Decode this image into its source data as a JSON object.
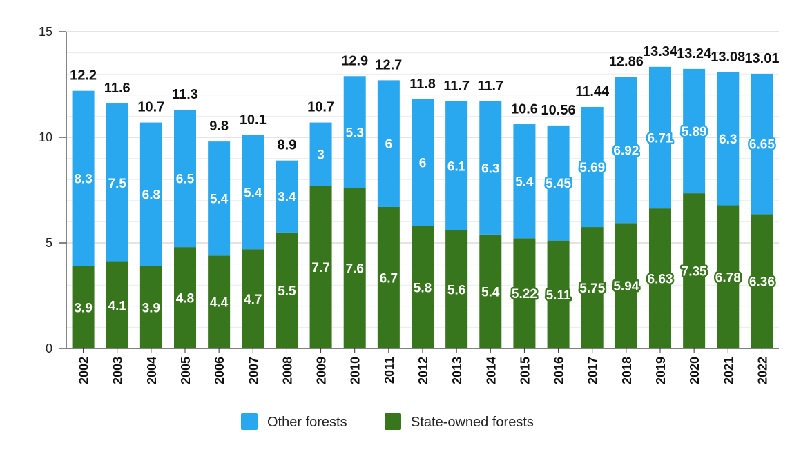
{
  "chart_data": {
    "type": "bar",
    "stacked": true,
    "title": "",
    "xlabel": "",
    "ylabel": "",
    "ylim": [
      0,
      15
    ],
    "yticks": [
      0,
      5,
      10,
      15
    ],
    "grid": true,
    "legend_position": "bottom",
    "categories": [
      "2002",
      "2003",
      "2004",
      "2005",
      "2006",
      "2007",
      "2008",
      "2009",
      "2010",
      "2011",
      "2012",
      "2013",
      "2014",
      "2015",
      "2016",
      "2017",
      "2018",
      "2019",
      "2020",
      "2021",
      "2022"
    ],
    "series": [
      {
        "name": "State-owned forests",
        "color": "#38761d",
        "values": [
          3.9,
          4.1,
          3.9,
          4.8,
          4.4,
          4.7,
          5.5,
          7.7,
          7.6,
          6.7,
          5.8,
          5.6,
          5.4,
          5.22,
          5.11,
          5.75,
          5.94,
          6.63,
          7.35,
          6.78,
          6.36
        ],
        "labels": [
          "3.9",
          "4.1",
          "3.9",
          "4.8",
          "4.4",
          "4.7",
          "5.5",
          "7.7",
          "7.6",
          "6.7",
          "5.8",
          "5.6",
          "5.4",
          "5.22",
          "5.11",
          "5.75",
          "5.94",
          "6.63",
          "7.35",
          "6.78",
          "6.36"
        ]
      },
      {
        "name": "Other forests",
        "color": "#29a8f0",
        "values": [
          8.3,
          7.5,
          6.8,
          6.5,
          5.4,
          5.4,
          3.4,
          3,
          5.3,
          6,
          6,
          6.1,
          6.3,
          5.4,
          5.45,
          5.69,
          6.92,
          6.71,
          5.89,
          6.3,
          6.65
        ],
        "labels": [
          "8.3",
          "7.5",
          "6.8",
          "6.5",
          "5.4",
          "5.4",
          "3.4",
          "3",
          "5.3",
          "6",
          "6",
          "6.1",
          "6.3",
          "5.4",
          "5.45",
          "5.69",
          "6.92",
          "6.71",
          "5.89",
          "6.3",
          "6.65"
        ]
      }
    ],
    "totals": [
      12.2,
      11.6,
      10.7,
      11.3,
      9.8,
      10.1,
      8.9,
      10.7,
      12.9,
      12.7,
      11.8,
      11.7,
      11.7,
      10.6,
      10.56,
      11.44,
      12.86,
      13.34,
      13.24,
      13.08,
      13.01
    ],
    "total_labels": [
      "12.2",
      "11.6",
      "10.7",
      "11.3",
      "9.8",
      "10.1",
      "8.9",
      "10.7",
      "12.9",
      "12.7",
      "11.8",
      "11.7",
      "11.7",
      "10.6",
      "10.56",
      "11.44",
      "12.86",
      "13.34",
      "13.24",
      "13.08",
      "13.01"
    ]
  },
  "legend": {
    "items": [
      {
        "label": "Other forests",
        "color": "#29a8f0"
      },
      {
        "label": "State-owned forests",
        "color": "#38761d"
      }
    ]
  }
}
